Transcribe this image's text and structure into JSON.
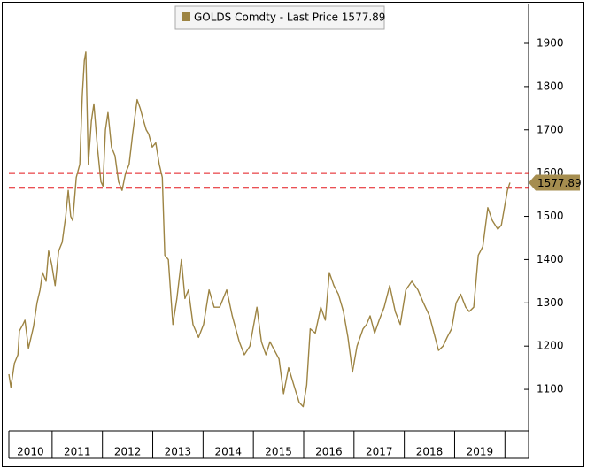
{
  "chart_data": {
    "type": "line",
    "x": [
      2010.14,
      2010.18,
      2010.25,
      2010.32,
      2010.35,
      2010.42,
      2010.46,
      2010.53,
      2010.6,
      2010.63,
      2010.7,
      2010.76,
      2010.81,
      2010.88,
      2010.93,
      2010.99,
      2011.06,
      2011.13,
      2011.2,
      2011.27,
      2011.32,
      2011.37,
      2011.41,
      2011.48,
      2011.55,
      2011.6,
      2011.64,
      2011.67,
      2011.72,
      2011.78,
      2011.83,
      2011.9,
      2011.97,
      2012.01,
      2012.06,
      2012.11,
      2012.18,
      2012.25,
      2012.32,
      2012.39,
      2012.46,
      2012.53,
      2012.6,
      2012.69,
      2012.75,
      2012.82,
      2012.87,
      2012.92,
      2012.99,
      2013.06,
      2013.13,
      2013.19,
      2013.24,
      2013.31,
      2013.4,
      2013.48,
      2013.57,
      2013.64,
      2013.71,
      2013.8,
      2013.91,
      2014.01,
      2014.12,
      2014.22,
      2014.33,
      2014.47,
      2014.58,
      2014.72,
      2014.82,
      2014.93,
      2015.07,
      2015.16,
      2015.25,
      2015.33,
      2015.42,
      2015.51,
      2015.6,
      2015.7,
      2015.83,
      2015.91,
      2015.99,
      2016.06,
      2016.13,
      2016.23,
      2016.34,
      2016.43,
      2016.51,
      2016.6,
      2016.69,
      2016.79,
      2016.88,
      2016.97,
      2017.06,
      2017.18,
      2017.25,
      2017.32,
      2017.41,
      2017.5,
      2017.6,
      2017.71,
      2017.82,
      2017.92,
      2018.03,
      2018.15,
      2018.27,
      2018.38,
      2018.5,
      2018.59,
      2018.68,
      2018.77,
      2018.85,
      2018.94,
      2019.03,
      2019.12,
      2019.22,
      2019.29,
      2019.38,
      2019.47,
      2019.56,
      2019.66,
      2019.75,
      2019.86,
      2019.93,
      2019.99,
      2020.05,
      2020.1
    ],
    "series": [
      {
        "name": "GOLDS Comdty - Last Price 1577.89",
        "color": "#9d8443",
        "values": [
          1135,
          1105,
          1160,
          1180,
          1235,
          1250,
          1260,
          1195,
          1230,
          1245,
          1300,
          1330,
          1370,
          1350,
          1420,
          1390,
          1340,
          1420,
          1440,
          1500,
          1560,
          1500,
          1490,
          1590,
          1620,
          1780,
          1860,
          1880,
          1620,
          1720,
          1760,
          1660,
          1580,
          1570,
          1700,
          1740,
          1660,
          1640,
          1580,
          1560,
          1600,
          1620,
          1690,
          1770,
          1750,
          1720,
          1700,
          1690,
          1660,
          1670,
          1620,
          1590,
          1410,
          1400,
          1250,
          1310,
          1400,
          1310,
          1330,
          1250,
          1220,
          1250,
          1330,
          1290,
          1290,
          1330,
          1270,
          1210,
          1180,
          1200,
          1290,
          1210,
          1180,
          1210,
          1190,
          1170,
          1090,
          1150,
          1100,
          1070,
          1060,
          1110,
          1240,
          1230,
          1290,
          1260,
          1370,
          1340,
          1320,
          1280,
          1220,
          1140,
          1200,
          1240,
          1250,
          1270,
          1230,
          1260,
          1290,
          1340,
          1280,
          1250,
          1330,
          1350,
          1330,
          1300,
          1270,
          1230,
          1190,
          1200,
          1220,
          1240,
          1300,
          1320,
          1290,
          1280,
          1290,
          1410,
          1430,
          1520,
          1490,
          1470,
          1480,
          1520,
          1560,
          1577.89
        ]
      }
    ],
    "last_price": 1577.89,
    "reference_lines": [
      {
        "value": 1600,
        "color": "#e3161b"
      },
      {
        "value": 1566,
        "color": "#e3161b"
      }
    ],
    "xlim": [
      2010.14,
      2020.47
    ],
    "xticks": [
      2011,
      2012,
      2013,
      2014,
      2015,
      2016,
      2017,
      2018,
      2019,
      2020
    ],
    "year_labels": [
      2010,
      2011,
      2012,
      2013,
      2014,
      2015,
      2016,
      2017,
      2018,
      2019
    ],
    "ylim": [
      1004,
      1990
    ],
    "yticks": [
      1100,
      1200,
      1300,
      1400,
      1500,
      1600,
      1700,
      1800,
      1900
    ]
  }
}
